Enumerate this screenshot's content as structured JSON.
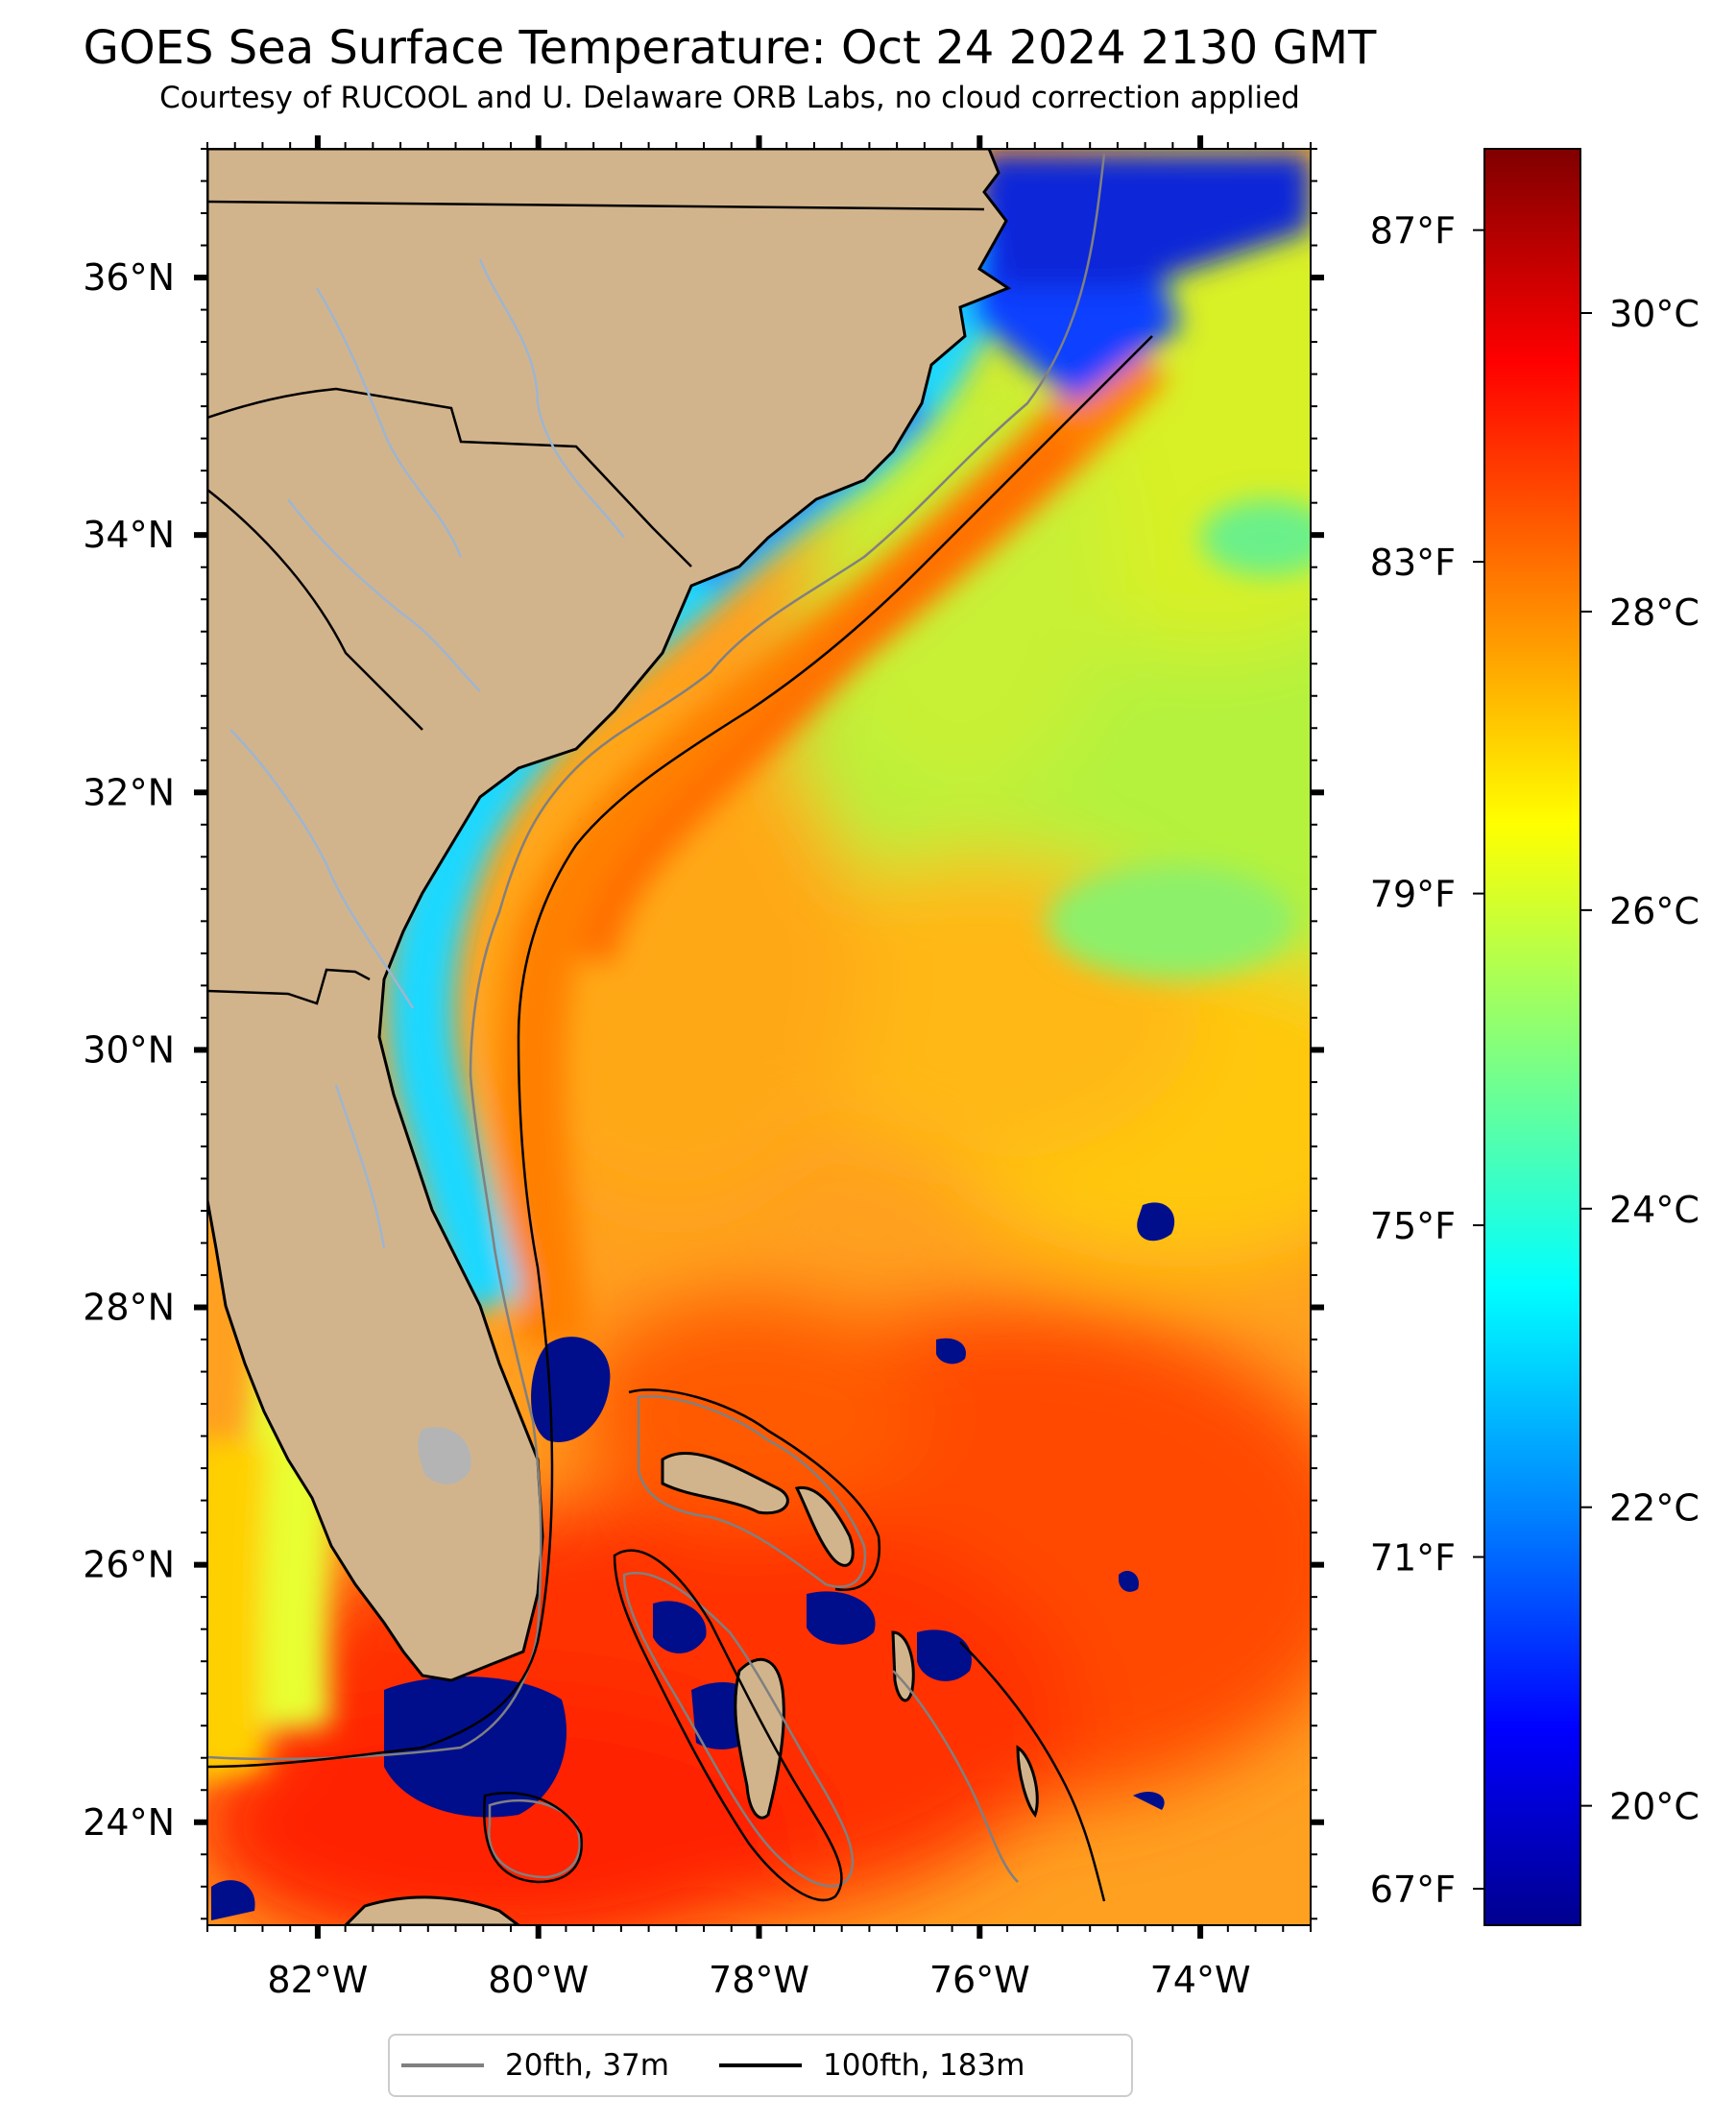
{
  "header": {
    "title": "GOES Sea Surface Temperature: Oct 24 2024 2130 GMT",
    "subtitle": "Courtesy of RUCOOL and U. Delaware ORB Labs, no cloud correction applied"
  },
  "map": {
    "lon_range": [
      -83.0,
      -73.0
    ],
    "lat_range": [
      23.2,
      37.0
    ],
    "lon_ticks": [
      {
        "value": -82,
        "label": "82°W"
      },
      {
        "value": -80,
        "label": "80°W"
      },
      {
        "value": -78,
        "label": "78°W"
      },
      {
        "value": -76,
        "label": "76°W"
      },
      {
        "value": -74,
        "label": "74°W"
      }
    ],
    "lat_ticks": [
      {
        "value": 36,
        "label": "36°N"
      },
      {
        "value": 34,
        "label": "34°N"
      },
      {
        "value": 32,
        "label": "32°N"
      },
      {
        "value": 30,
        "label": "30°N"
      },
      {
        "value": 28,
        "label": "28°N"
      },
      {
        "value": 26,
        "label": "26°N"
      },
      {
        "value": 24,
        "label": "24°N"
      }
    ],
    "colors": {
      "land": "#d2b48c",
      "shelf_20fth": "#808080",
      "shelf_100fth": "#000000",
      "rivers": "#9fb5cf"
    }
  },
  "colorbar": {
    "celsius_range": [
      19.2,
      31.1
    ],
    "celsius_ticks": [
      {
        "value": 30,
        "label": "30°C"
      },
      {
        "value": 28,
        "label": "28°C"
      },
      {
        "value": 26,
        "label": "26°C"
      },
      {
        "value": 24,
        "label": "24°C"
      },
      {
        "value": 22,
        "label": "22°C"
      },
      {
        "value": 20,
        "label": "20°C"
      }
    ],
    "fahrenheit_ticks": [
      {
        "value": 87,
        "label": "87°F"
      },
      {
        "value": 83,
        "label": "83°F"
      },
      {
        "value": 79,
        "label": "79°F"
      },
      {
        "value": 75,
        "label": "75°F"
      },
      {
        "value": 71,
        "label": "71°F"
      },
      {
        "value": 67,
        "label": "67°F"
      }
    ],
    "colormap": [
      "#00008f",
      "#0000ff",
      "#0080ff",
      "#00ffff",
      "#80ff80",
      "#ffff00",
      "#ff8000",
      "#ff0000",
      "#800000"
    ]
  },
  "legend": [
    {
      "label": "20fth, 37m",
      "color": "#808080"
    },
    {
      "label": "100fth, 183m",
      "color": "#000000"
    }
  ]
}
